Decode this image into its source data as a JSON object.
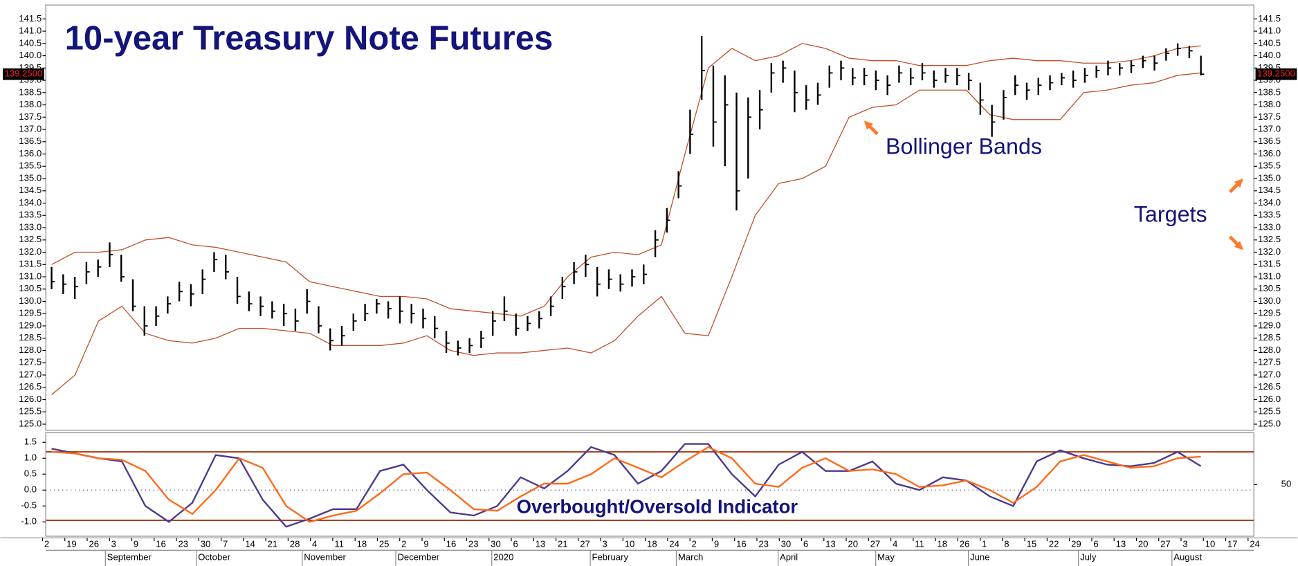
{
  "chart_data": [
    {
      "type": "ohlc",
      "title": "10-year Treasury Note Futures",
      "ylim": [
        124.75,
        142.0
      ],
      "yticks": [
        {
          "value": 125,
          "label": "125.0"
        },
        125.5,
        {
          "value": 126,
          "label": "126.0"
        },
        126.5,
        {
          "value": 127,
          "label": "127.0"
        },
        127.5,
        {
          "value": 128,
          "label": "128.0"
        },
        128.5,
        {
          "value": 129,
          "label": "129.0"
        },
        129.5,
        {
          "value": 130,
          "label": "130.0"
        },
        130.5,
        {
          "value": 131,
          "label": "131.0"
        },
        131.5,
        {
          "value": 132,
          "label": "132.0"
        },
        132.5,
        {
          "value": 133,
          "label": "133.0"
        },
        133.5,
        {
          "value": 134,
          "label": "134.0"
        },
        134.5,
        {
          "value": 135,
          "label": "135.0"
        },
        135.5,
        {
          "value": 136,
          "label": "136.0"
        },
        136.5,
        {
          "value": 137,
          "label": "137.0"
        },
        137.5,
        {
          "value": 138,
          "label": "138.0"
        },
        138.5,
        {
          "value": 139,
          "label": "139.0"
        },
        139.5,
        {
          "value": 140,
          "label": "140.0"
        },
        140.5,
        {
          "value": 141,
          "label": "141.0"
        },
        141.5
      ],
      "last_price": {
        "value": 139.25,
        "label": "139.2500"
      },
      "color": "#000000",
      "high": [
        131.4,
        131.1,
        131.0,
        131.6,
        131.7,
        132.4,
        131.9,
        130.9,
        129.8,
        129.8,
        130.2,
        130.8,
        130.7,
        131.3,
        132.0,
        131.9,
        131.0,
        130.4,
        130.2,
        130.0,
        129.9,
        129.7,
        130.5,
        129.8,
        128.9,
        129.0,
        129.5,
        129.9,
        130.1,
        130.0,
        130.2,
        129.9,
        129.7,
        129.4,
        128.8,
        128.4,
        128.5,
        128.8,
        129.6,
        130.2,
        129.5,
        129.4,
        129.6,
        130.2,
        131.0,
        131.6,
        131.9,
        131.4,
        131.3,
        131.1,
        131.3,
        131.5,
        132.9,
        133.8,
        135.3,
        137.8,
        140.8,
        139.6,
        139.2,
        138.5,
        138.3,
        138.6,
        139.7,
        139.8,
        139.4,
        138.8,
        138.9,
        139.6,
        139.8,
        139.5,
        139.5,
        139.4,
        139.2,
        139.6,
        139.5,
        139.7,
        139.4,
        139.5,
        139.5,
        139.3,
        138.9,
        138.0,
        138.6,
        139.2,
        138.9,
        139.1,
        139.2,
        139.3,
        139.4,
        139.5,
        139.6,
        139.8,
        139.7,
        139.8,
        140.0,
        140.0,
        140.3,
        140.5,
        140.4,
        140.0
      ],
      "low": [
        130.5,
        130.3,
        130.1,
        130.7,
        131.0,
        131.4,
        130.8,
        129.6,
        128.6,
        129.0,
        129.5,
        130.0,
        129.8,
        130.3,
        131.2,
        130.9,
        129.9,
        129.6,
        129.4,
        129.3,
        129.0,
        128.8,
        129.5,
        128.7,
        128.0,
        128.2,
        128.8,
        129.2,
        129.5,
        129.3,
        129.1,
        129.1,
        128.9,
        128.5,
        127.9,
        127.8,
        127.9,
        128.1,
        128.6,
        129.2,
        128.6,
        128.8,
        128.9,
        129.4,
        130.1,
        130.7,
        131.0,
        130.2,
        130.5,
        130.4,
        130.6,
        130.7,
        131.8,
        132.8,
        134.2,
        136.0,
        138.2,
        136.3,
        135.5,
        133.7,
        135.0,
        137.0,
        138.5,
        138.9,
        137.7,
        137.8,
        138.0,
        138.7,
        139.0,
        138.8,
        138.8,
        138.6,
        138.4,
        138.9,
        138.8,
        139.0,
        138.7,
        138.9,
        138.8,
        138.6,
        137.6,
        136.7,
        137.4,
        138.4,
        138.2,
        138.4,
        138.6,
        138.8,
        138.7,
        138.9,
        139.1,
        139.2,
        139.2,
        139.3,
        139.5,
        139.4,
        139.8,
        140.0,
        139.9,
        139.2
      ],
      "close": [
        130.8,
        130.7,
        130.6,
        131.2,
        131.4,
        131.9,
        131.0,
        129.8,
        129.0,
        129.4,
        129.9,
        130.4,
        130.3,
        130.9,
        131.7,
        131.2,
        130.2,
        129.9,
        129.8,
        129.6,
        129.5,
        129.2,
        130.0,
        129.0,
        128.4,
        128.6,
        129.2,
        129.5,
        129.9,
        129.7,
        129.6,
        129.5,
        129.3,
        128.9,
        128.3,
        128.1,
        128.2,
        128.5,
        129.2,
        129.6,
        128.9,
        129.1,
        129.3,
        129.8,
        130.6,
        131.2,
        131.5,
        130.7,
        130.9,
        130.7,
        131.0,
        131.1,
        132.5,
        133.3,
        134.7,
        136.8,
        139.4,
        137.3,
        138.0,
        134.5,
        137.5,
        137.8,
        139.3,
        139.5,
        138.5,
        138.2,
        138.4,
        139.3,
        139.5,
        139.1,
        139.2,
        139.0,
        138.8,
        139.3,
        139.1,
        139.3,
        139.0,
        139.2,
        139.2,
        139.0,
        138.2,
        137.3,
        138.3,
        138.8,
        138.6,
        138.8,
        138.9,
        139.1,
        139.0,
        139.2,
        139.4,
        139.5,
        139.5,
        139.6,
        139.8,
        139.7,
        140.1,
        140.3,
        140.2,
        139.25
      ],
      "band_color": "#c0502a",
      "upper_band": [
        131.5,
        132.0,
        132.0,
        132.1,
        132.5,
        132.6,
        132.3,
        132.2,
        132.0,
        131.8,
        131.6,
        130.8,
        130.6,
        130.4,
        130.2,
        130.2,
        130.1,
        129.7,
        129.6,
        129.5,
        129.4,
        129.8,
        131.0,
        131.8,
        132.0,
        131.9,
        132.3,
        136.0,
        139.5,
        140.3,
        139.8,
        140.0,
        140.5,
        140.3,
        139.9,
        139.8,
        139.8,
        139.6,
        139.6,
        139.6,
        139.8,
        139.9,
        139.8,
        139.8,
        139.7,
        139.7,
        139.8,
        140.0,
        140.3,
        140.4
      ],
      "lower_band": [
        126.2,
        127.0,
        129.2,
        129.8,
        128.7,
        128.4,
        128.3,
        128.5,
        128.9,
        128.9,
        128.8,
        128.7,
        128.2,
        128.2,
        128.2,
        128.3,
        128.6,
        128.0,
        127.8,
        127.9,
        127.9,
        128.0,
        128.1,
        127.9,
        128.4,
        129.4,
        130.2,
        128.7,
        128.6,
        131.0,
        133.5,
        134.8,
        135.0,
        135.5,
        137.5,
        137.9,
        138.0,
        138.6,
        138.6,
        138.6,
        137.6,
        137.4,
        137.4,
        137.4,
        138.5,
        138.6,
        138.8,
        138.9,
        139.2,
        139.3
      ],
      "annotations": [
        "Bollinger Bands",
        "Targets"
      ],
      "annotation_color": "#ff7a2a"
    },
    {
      "type": "line",
      "title": "Overbought/Oversold Indicator",
      "ylim": [
        -1.45,
        1.8
      ],
      "yticks": [
        1.5,
        {
          "value": 1,
          "label": "1.0"
        },
        0.5,
        {
          "value": 0,
          "label": "0.0"
        },
        -0.5,
        {
          "value": -1,
          "label": "-1.0"
        }
      ],
      "y2lim": [
        0,
        100
      ],
      "y2ticks": [
        50
      ],
      "levels": [
        1.2,
        -0.95
      ],
      "level_color": "#a0300a",
      "series": [
        {
          "color": "#4b3a8c",
          "values": [
            1.3,
            1.15,
            1.0,
            0.9,
            -0.5,
            -1.0,
            -0.4,
            1.1,
            1.0,
            -0.3,
            -1.15,
            -0.9,
            -0.6,
            -0.6,
            0.6,
            0.8,
            0.0,
            -0.7,
            -0.8,
            -0.5,
            0.4,
            0.05,
            0.6,
            1.35,
            1.1,
            0.2,
            0.6,
            1.45,
            1.45,
            0.5,
            -0.2,
            0.8,
            1.2,
            0.6,
            0.6,
            0.9,
            0.2,
            0.0,
            0.4,
            0.3,
            -0.2,
            -0.5,
            0.9,
            1.25,
            1.0,
            0.8,
            0.75,
            0.85,
            1.2,
            0.75
          ]
        },
        {
          "color": "#ff6a1a",
          "values": [
            1.2,
            1.15,
            1.0,
            0.95,
            0.6,
            -0.3,
            -0.75,
            0.0,
            1.0,
            0.7,
            -0.5,
            -1.0,
            -0.8,
            -0.65,
            -0.1,
            0.5,
            0.55,
            0.0,
            -0.6,
            -0.65,
            -0.2,
            0.2,
            0.2,
            0.5,
            1.0,
            0.7,
            0.4,
            0.9,
            1.35,
            1.0,
            0.2,
            0.1,
            0.7,
            1.0,
            0.6,
            0.65,
            0.5,
            0.1,
            0.15,
            0.3,
            0.0,
            -0.4,
            0.1,
            0.9,
            1.1,
            0.9,
            0.7,
            0.75,
            1.0,
            1.05
          ]
        }
      ],
      "week_labels": [
        "2",
        "19",
        "26",
        "3",
        "9",
        "16",
        "23",
        "30",
        "7",
        "14",
        "21",
        "28",
        "4",
        "11",
        "18",
        "25",
        "2",
        "9",
        "16",
        "23",
        "30",
        "6",
        "13",
        "21",
        "27",
        "3",
        "10",
        "18",
        "24",
        "2",
        "9",
        "16",
        "23",
        "30",
        "6",
        "13",
        "20",
        "27",
        "4",
        "11",
        "18",
        "26",
        "1",
        "8",
        "15",
        "22",
        "29",
        "6",
        "13",
        "20",
        "27",
        "3",
        "10",
        "17",
        "24"
      ],
      "month_labels": [
        "September",
        "October",
        "November",
        "December",
        "2020",
        "February",
        "March",
        "April",
        "May",
        "June",
        "July",
        "August"
      ]
    }
  ]
}
